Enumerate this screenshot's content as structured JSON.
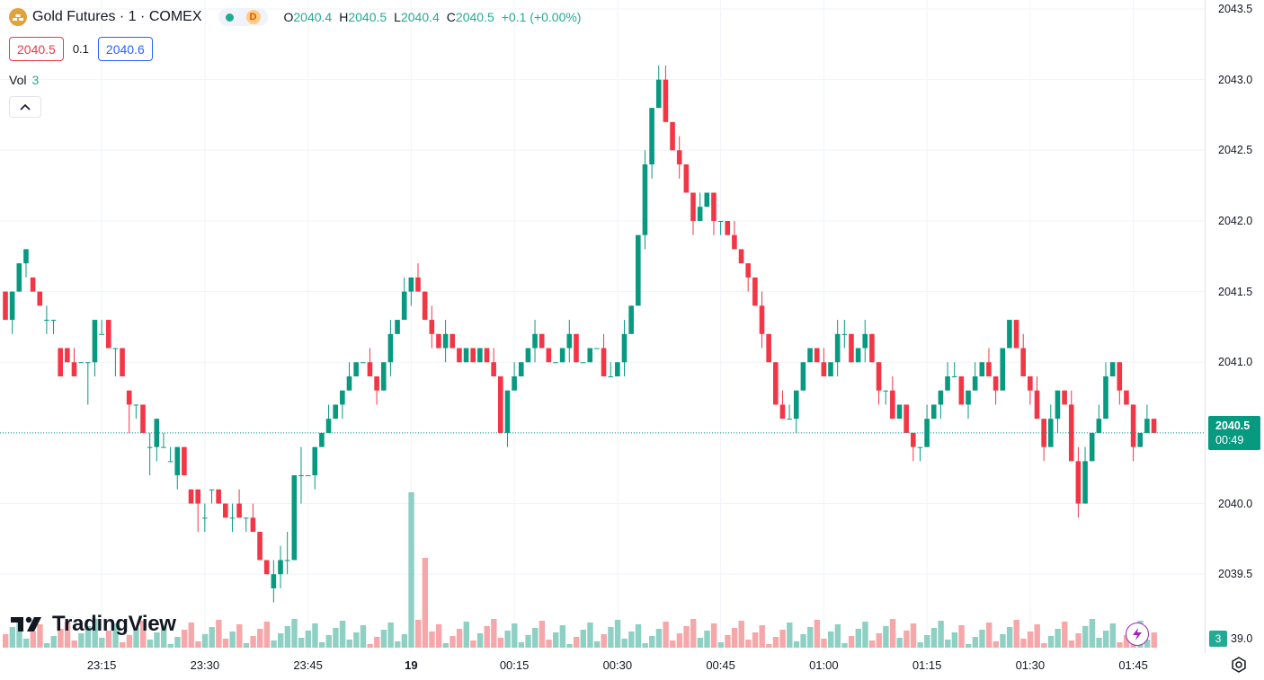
{
  "legend": {
    "symbol": "Gold Futures · 1 · COMEX",
    "delay_badge": "D",
    "open_key": "O",
    "open": "2040.4",
    "high_key": "H",
    "high": "2040.5",
    "low_key": "L",
    "low": "2040.4",
    "close_key": "C",
    "close": "2040.5",
    "change": "+0.1 (+0.00%)"
  },
  "bidask": {
    "sell": "2040.5",
    "spread": "0.1",
    "buy": "2040.6"
  },
  "volume_legend": {
    "label": "Vol",
    "value": "3"
  },
  "last_price": {
    "price": "2040.5",
    "countdown": "00:49"
  },
  "volume_axis": {
    "badge": "3",
    "tick": "39.0"
  },
  "logo": {
    "text": "TradingView"
  },
  "colors": {
    "up": "#089981",
    "down": "#f23645",
    "up_vol": "#8fd0c4",
    "down_vol": "#f6a7a9",
    "grid": "#f0f3fa"
  },
  "icons": {
    "symbol": "gold-coin-icon",
    "collapse": "chevron-up-icon",
    "flash": "lightning-icon",
    "settings": "gear-icon"
  },
  "chart_data": {
    "type": "candlestick",
    "interval": "1",
    "y_ticks": [
      "2043.5",
      "2043.0",
      "2042.5",
      "2042.0",
      "2041.5",
      "2041.0",
      "2040.5",
      "2040.0",
      "2039.5"
    ],
    "ylim": [
      2039.05,
      2043.5
    ],
    "x_ticks": [
      {
        "label": "23:15",
        "bar": 14
      },
      {
        "label": "23:30",
        "bar": 29
      },
      {
        "label": "23:45",
        "bar": 44
      },
      {
        "label": "19",
        "bar": 59,
        "bold": true
      },
      {
        "label": "00:15",
        "bar": 74
      },
      {
        "label": "00:30",
        "bar": 89
      },
      {
        "label": "00:45",
        "bar": 104
      },
      {
        "label": "01:00",
        "bar": 119
      },
      {
        "label": "01:15",
        "bar": 134
      },
      {
        "label": "01:30",
        "bar": 149
      },
      {
        "label": "01:45",
        "bar": 164
      }
    ],
    "x_first_bar": 0,
    "x_last_bar": 167,
    "candles": [
      [
        2041.5,
        2041.5,
        2041.3,
        2041.3
      ],
      [
        2041.3,
        2041.5,
        2041.2,
        2041.5
      ],
      [
        2041.5,
        2041.7,
        2041.5,
        2041.7
      ],
      [
        2041.7,
        2041.8,
        2041.6,
        2041.8
      ],
      [
        2041.6,
        2041.6,
        2041.5,
        2041.5
      ],
      [
        2041.5,
        2041.5,
        2041.4,
        2041.4
      ],
      [
        2041.3,
        2041.4,
        2041.2,
        2041.3
      ],
      [
        2041.3,
        2041.3,
        2041.2,
        2041.3
      ],
      [
        2041.1,
        2041.1,
        2040.9,
        2040.9
      ],
      [
        2041.1,
        2041.1,
        2041.0,
        2041.0
      ],
      [
        2041.0,
        2041.1,
        2040.9,
        2040.9
      ],
      [
        2041.0,
        2041.0,
        2041.0,
        2041.0
      ],
      [
        2041.0,
        2041.0,
        2040.7,
        2041.0
      ],
      [
        2041.0,
        2041.3,
        2040.9,
        2041.3
      ],
      [
        2041.2,
        2041.3,
        2041.2,
        2041.2
      ],
      [
        2041.3,
        2041.3,
        2041.1,
        2041.1
      ],
      [
        2041.1,
        2041.1,
        2040.9,
        2041.1
      ],
      [
        2041.1,
        2041.1,
        2040.9,
        2040.9
      ],
      [
        2040.8,
        2040.8,
        2040.5,
        2040.7
      ],
      [
        2040.7,
        2040.7,
        2040.6,
        2040.7
      ],
      [
        2040.7,
        2040.7,
        2040.5,
        2040.5
      ],
      [
        2040.4,
        2040.5,
        2040.2,
        2040.4
      ],
      [
        2040.4,
        2040.6,
        2040.3,
        2040.6
      ],
      [
        2040.4,
        2040.5,
        2040.4,
        2040.4
      ],
      [
        2040.3,
        2040.4,
        2040.3,
        2040.3
      ],
      [
        2040.2,
        2040.4,
        2040.1,
        2040.4
      ],
      [
        2040.4,
        2040.4,
        2040.2,
        2040.2
      ],
      [
        2040.1,
        2040.1,
        2040.0,
        2040.0
      ],
      [
        2040.1,
        2040.1,
        2039.8,
        2040.0
      ],
      [
        2039.9,
        2040.0,
        2039.8,
        2039.9
      ],
      [
        2040.1,
        2040.1,
        2040.0,
        2040.1
      ],
      [
        2040.1,
        2040.1,
        2040.0,
        2040.0
      ],
      [
        2040.0,
        2040.0,
        2039.9,
        2039.9
      ],
      [
        2039.9,
        2040.0,
        2039.8,
        2039.9
      ],
      [
        2040.0,
        2040.1,
        2039.9,
        2039.9
      ],
      [
        2039.9,
        2039.9,
        2039.8,
        2039.9
      ],
      [
        2039.9,
        2040.0,
        2039.8,
        2039.8
      ],
      [
        2039.8,
        2039.8,
        2039.6,
        2039.6
      ],
      [
        2039.6,
        2039.6,
        2039.5,
        2039.5
      ],
      [
        2039.4,
        2039.6,
        2039.3,
        2039.5
      ],
      [
        2039.5,
        2039.7,
        2039.4,
        2039.6
      ],
      [
        2039.6,
        2039.8,
        2039.5,
        2039.6
      ],
      [
        2039.6,
        2040.2,
        2039.6,
        2040.2
      ],
      [
        2040.2,
        2040.4,
        2040.0,
        2040.2
      ]
    ],
    "volume_note": "volume bars per candle in lower pane"
  }
}
